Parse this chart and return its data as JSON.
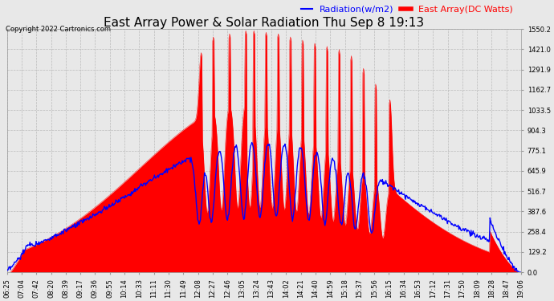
{
  "title": "East Array Power & Solar Radiation Thu Sep 8 19:13",
  "copyright": "Copyright 2022 Cartronics.com",
  "legend_radiation": "Radiation(w/m2)",
  "legend_array": "East Array(DC Watts)",
  "radiation_color": "blue",
  "array_color": "red",
  "fill_color": "red",
  "background_color": "#e8e8e8",
  "grid_color": "#bbbbbb",
  "ymin": 0.0,
  "ymax": 1550.2,
  "yticks": [
    0.0,
    129.2,
    258.4,
    387.6,
    516.7,
    645.9,
    775.1,
    904.3,
    1033.5,
    1162.7,
    1291.9,
    1421.0,
    1550.2
  ],
  "title_fontsize": 11,
  "legend_fontsize": 8,
  "tick_fontsize": 6,
  "copyright_fontsize": 6,
  "xtick_labels": [
    "06:25",
    "07:04",
    "07:42",
    "08:20",
    "08:39",
    "09:17",
    "09:36",
    "09:55",
    "10:14",
    "10:33",
    "11:11",
    "11:30",
    "11:49",
    "12:08",
    "12:27",
    "12:46",
    "13:05",
    "13:24",
    "13:43",
    "14:02",
    "14:21",
    "14:40",
    "14:59",
    "15:18",
    "15:37",
    "15:56",
    "16:15",
    "16:34",
    "16:53",
    "17:12",
    "17:31",
    "17:50",
    "18:09",
    "18:28",
    "18:47",
    "19:06"
  ]
}
